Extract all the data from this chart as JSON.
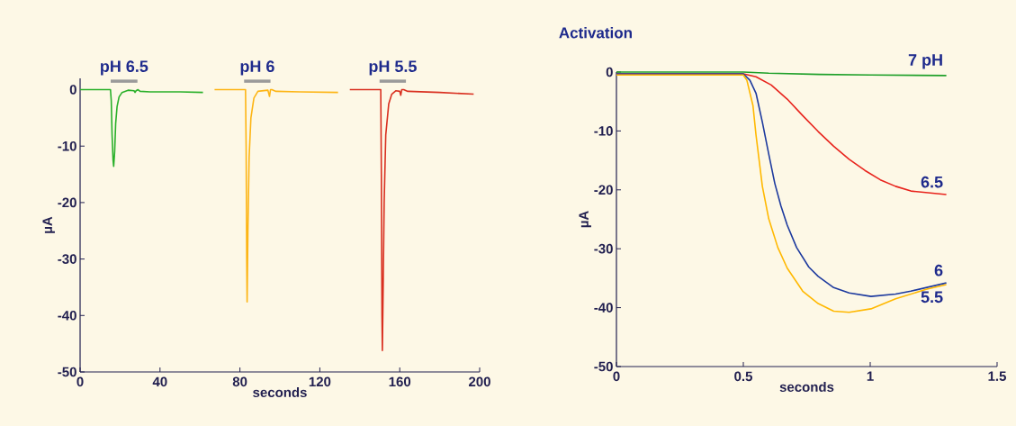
{
  "chart_data": [
    {
      "type": "line",
      "xlabel": "seconds",
      "ylabel": "µA",
      "xlim": [
        0,
        200
      ],
      "xticks": [
        0,
        40,
        80,
        120,
        160,
        200
      ],
      "ylim": [
        -50,
        2
      ],
      "yticks": [
        -50,
        -40,
        -30,
        -20,
        -10,
        0
      ],
      "grid": false,
      "legend": false,
      "marker": "none",
      "line_style": "solid",
      "annotations": [
        {
          "text": "pH 6.5",
          "x": 22,
          "y": 1.5
        },
        {
          "text": "pH 6",
          "x": 88.7,
          "y": 1.5
        },
        {
          "text": "pH 5.5",
          "x": 156.5,
          "y": 1.5
        }
      ],
      "series": [
        {
          "color": "#9a9a9a",
          "x": [
            15.3,
            28.7
          ],
          "values": [
            1.5,
            1.5
          ]
        },
        {
          "color": "#9a9a9a",
          "x": [
            82.1,
            95.3
          ],
          "values": [
            1.5,
            1.5
          ]
        },
        {
          "color": "#9a9a9a",
          "x": [
            149.9,
            163.1
          ],
          "values": [
            1.5,
            1.5
          ]
        },
        {
          "color": "#2ab02a",
          "x": [
            0,
            15.2,
            15.6,
            16.0,
            16.5,
            16.8,
            17.3,
            17.8,
            18.5,
            19.5,
            21,
            24,
            27,
            27.5,
            28,
            29,
            30,
            35,
            50,
            61.5
          ],
          "values": [
            0,
            0,
            -2,
            -8,
            -12.5,
            -13.6,
            -11,
            -6,
            -3,
            -1.3,
            -0.5,
            -0.1,
            -0.2,
            -0.5,
            -0.2,
            0,
            -0.3,
            -0.4,
            -0.4,
            -0.5
          ]
        },
        {
          "color": "#fdb515",
          "x": [
            67.3,
            82.8,
            83.1,
            83.4,
            83.6,
            84,
            84.6,
            85.5,
            87,
            89,
            94,
            94.8,
            95.3,
            96,
            98,
            110,
            129.1
          ],
          "values": [
            0,
            0,
            -10,
            -30,
            -37.6,
            -25,
            -12,
            -5,
            -1.5,
            -0.3,
            -0.1,
            -1.2,
            0,
            0,
            -0.3,
            -0.4,
            -0.5
          ]
        },
        {
          "color": "#d93020",
          "x": [
            135,
            150.5,
            150.8,
            151.1,
            151.3,
            151.7,
            152.2,
            153,
            154.5,
            156,
            158,
            160,
            160.5,
            161,
            162,
            164,
            180,
            197
          ],
          "values": [
            0,
            0,
            -15,
            -40,
            -46.2,
            -35,
            -20,
            -8,
            -2.5,
            -0.8,
            -0.2,
            -0.3,
            -1,
            0,
            0,
            -0.3,
            -0.5,
            -0.8
          ]
        }
      ]
    },
    {
      "type": "line",
      "title": "Activation",
      "xlabel": "seconds",
      "ylabel": "µA",
      "xlim": [
        0,
        1.5
      ],
      "xticks": [
        0,
        0.5,
        1,
        1.5
      ],
      "ylim": [
        -50,
        0
      ],
      "yticks": [
        -50,
        -40,
        -30,
        -20,
        -10,
        0
      ],
      "grid": false,
      "legend": false,
      "marker": "none",
      "line_style": "solid",
      "series": [
        {
          "name": "7 pH",
          "color": "#1fa02a",
          "x": [
            0,
            0.5,
            0.6,
            0.8,
            1.0,
            1.3
          ],
          "values": [
            0,
            0,
            -0.2,
            -0.4,
            -0.5,
            -0.6
          ]
        },
        {
          "name": "6.5",
          "color": "#e8231c",
          "x": [
            0,
            0.5,
            0.55,
            0.61,
            0.673,
            0.734,
            0.795,
            0.856,
            0.917,
            0.979,
            1.04,
            1.1,
            1.16,
            1.3
          ],
          "values": [
            -0.3,
            -0.3,
            -0.8,
            -2.2,
            -4.6,
            -7.4,
            -10.1,
            -12.6,
            -14.8,
            -16.7,
            -18.3,
            -19.4,
            -20.2,
            -20.8
          ]
        },
        {
          "name": "6",
          "color": "#1d3a9e",
          "x": [
            0,
            0.5,
            0.526,
            0.55,
            0.575,
            0.6,
            0.624,
            0.648,
            0.673,
            0.71,
            0.758,
            0.795,
            0.856,
            0.917,
            1.003,
            1.1,
            1.16,
            1.3
          ],
          "values": [
            -0.3,
            -0.3,
            -1.4,
            -3.6,
            -8.5,
            -13.9,
            -18.9,
            -22.7,
            -26,
            -29.8,
            -33.1,
            -34.7,
            -36.6,
            -37.5,
            -38.1,
            -37.7,
            -37.2,
            -35.8
          ]
        },
        {
          "name": "5.5",
          "color": "#ffb800",
          "x": [
            0,
            0.5,
            0.514,
            0.538,
            0.55,
            0.575,
            0.6,
            0.636,
            0.673,
            0.734,
            0.795,
            0.856,
            0.917,
            1.003,
            1.1,
            1.22,
            1.3
          ],
          "values": [
            -0.5,
            -0.5,
            -1.4,
            -5.7,
            -10.7,
            -19.4,
            -24.9,
            -29.8,
            -33.3,
            -37.2,
            -39.3,
            -40.6,
            -40.8,
            -40.2,
            -38.5,
            -36.9,
            -36.1
          ]
        }
      ]
    }
  ]
}
